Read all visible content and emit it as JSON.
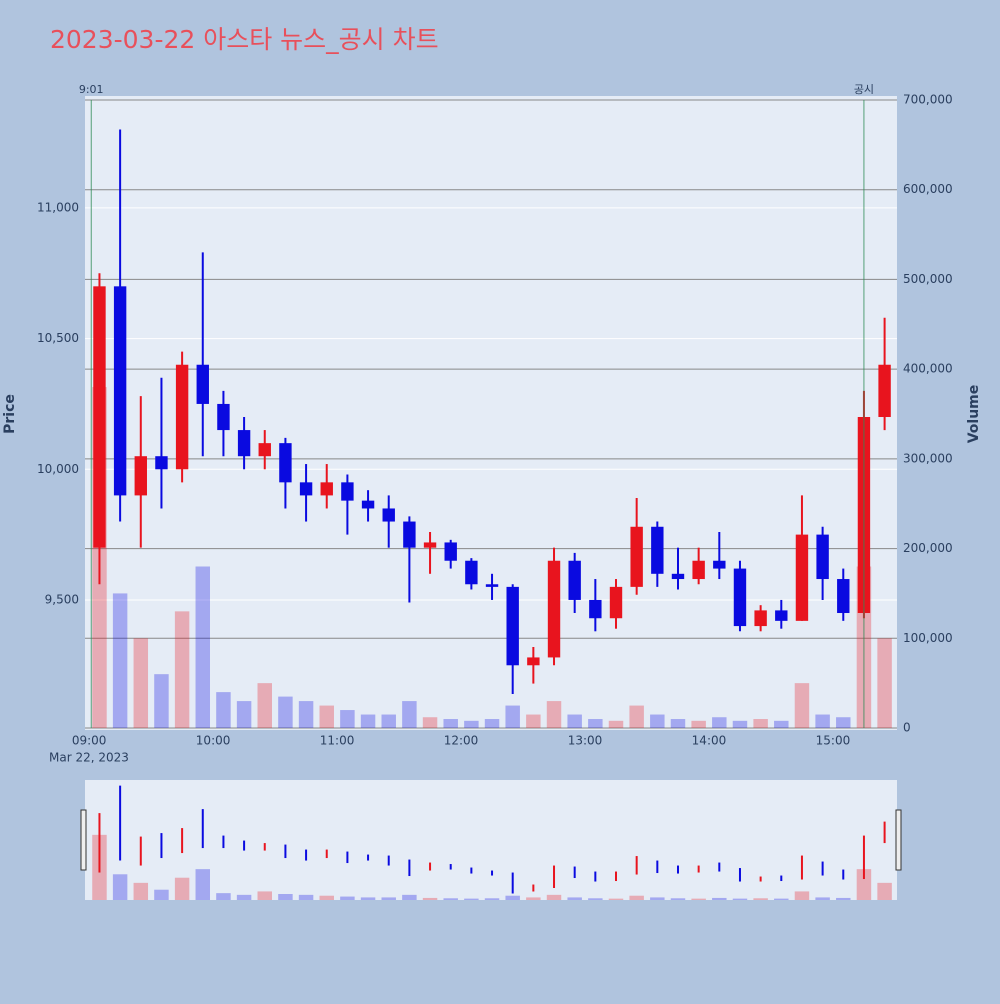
{
  "chart_data": {
    "type": "candlestick",
    "title": "2023-03-22 아스타 뉴스_공시 차트",
    "ylabel": "Price",
    "y2label": "Volume",
    "x_date_label": "Mar 22, 2023",
    "x": [
      "09:00",
      "09:10",
      "09:20",
      "09:30",
      "09:40",
      "09:50",
      "10:00",
      "10:10",
      "10:20",
      "10:30",
      "10:40",
      "10:50",
      "11:00",
      "11:10",
      "11:20",
      "11:30",
      "11:40",
      "11:50",
      "12:00",
      "12:10",
      "12:20",
      "12:30",
      "12:40",
      "12:50",
      "13:00",
      "13:10",
      "13:20",
      "13:30",
      "13:40",
      "13:50",
      "14:00",
      "14:10",
      "14:20",
      "14:30",
      "14:40",
      "14:50",
      "15:00",
      "15:10",
      "15:20"
    ],
    "open": [
      9700,
      10700,
      9900,
      10050,
      10000,
      10400,
      10250,
      10150,
      10050,
      10100,
      9950,
      9900,
      9950,
      9880,
      9850,
      9800,
      9700,
      9720,
      9650,
      9560,
      9550,
      9250,
      9280,
      9650,
      9500,
      9430,
      9550,
      9780,
      9600,
      9580,
      9650,
      9620,
      9400,
      9460,
      9420,
      9750,
      9580,
      9450,
      10200
    ],
    "high": [
      10750,
      11300,
      10280,
      10350,
      10450,
      10830,
      10300,
      10200,
      10150,
      10120,
      10020,
      10020,
      9980,
      9920,
      9900,
      9820,
      9760,
      9730,
      9660,
      9600,
      9560,
      9320,
      9700,
      9680,
      9580,
      9580,
      9890,
      9800,
      9700,
      9700,
      9760,
      9650,
      9480,
      9500,
      9900,
      9780,
      9620,
      10300,
      10580
    ],
    "low": [
      9560,
      9800,
      9700,
      9850,
      9950,
      10050,
      10050,
      10000,
      10000,
      9850,
      9800,
      9850,
      9750,
      9800,
      9700,
      9490,
      9600,
      9620,
      9540,
      9500,
      9140,
      9180,
      9250,
      9450,
      9380,
      9390,
      9520,
      9550,
      9540,
      9560,
      9580,
      9380,
      9380,
      9390,
      9420,
      9500,
      9420,
      9430,
      10150
    ],
    "close": [
      10700,
      9900,
      10050,
      10000,
      10400,
      10250,
      10150,
      10050,
      10100,
      9950,
      9900,
      9950,
      9880,
      9850,
      9800,
      9700,
      9720,
      9650,
      9560,
      9550,
      9250,
      9280,
      9650,
      9500,
      9430,
      9550,
      9780,
      9600,
      9580,
      9650,
      9620,
      9400,
      9460,
      9420,
      9750,
      9580,
      9450,
      10200,
      10400
    ],
    "volume": [
      380000,
      150000,
      100000,
      60000,
      130000,
      180000,
      40000,
      30000,
      50000,
      35000,
      30000,
      25000,
      20000,
      15000,
      15000,
      30000,
      12000,
      10000,
      8000,
      10000,
      25000,
      15000,
      30000,
      15000,
      10000,
      8000,
      25000,
      15000,
      10000,
      8000,
      12000,
      8000,
      10000,
      8000,
      50000,
      15000,
      12000,
      180000,
      100000
    ],
    "up_color": "#e8141e",
    "down_color": "#0a0ae0",
    "xlim": [
      "08:58",
      "15:31"
    ],
    "xticks": [
      "09:00",
      "10:00",
      "11:00",
      "12:00",
      "13:00",
      "14:00",
      "15:00"
    ],
    "ylim": [
      9010,
      11413
    ],
    "yticks": [
      {
        "value": 9500,
        "label": "9,500"
      },
      {
        "value": 10000,
        "label": "10,000"
      },
      {
        "value": 10500,
        "label": "10,500"
      },
      {
        "value": 11000,
        "label": "11,000"
      }
    ],
    "y2lim": [
      0,
      700000
    ],
    "y2ticks": [
      0,
      {
        "value": 100000,
        "label": "100,000"
      },
      {
        "value": 200000,
        "label": "200,000"
      },
      {
        "value": 300000,
        "label": "300,000"
      },
      {
        "value": 400000,
        "label": "400,000"
      },
      {
        "value": 500000,
        "label": "500,000"
      },
      {
        "value": 600000,
        "label": "600,000"
      },
      {
        "value": 700000,
        "label": "700,000"
      }
    ],
    "annotations": [
      {
        "x": "09:01",
        "text": "9:01"
      },
      {
        "x": "15:15",
        "text": "공시"
      }
    ]
  }
}
